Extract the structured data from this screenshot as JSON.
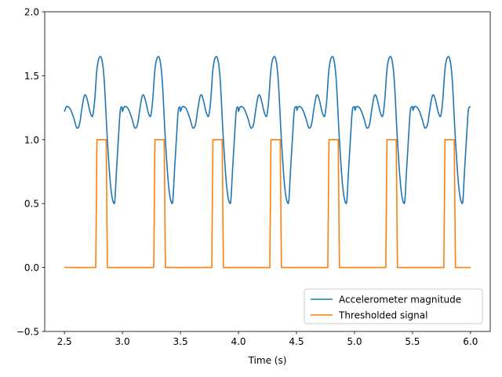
{
  "chart_data": {
    "type": "line",
    "title": "",
    "xlabel": "Time (s)",
    "ylabel": "",
    "xlim": [
      2.33,
      6.17
    ],
    "ylim": [
      -0.5,
      2.0
    ],
    "xticks": [
      2.5,
      3.0,
      3.5,
      4.0,
      4.5,
      5.0,
      5.5,
      6.0
    ],
    "xtick_labels": [
      "2.5",
      "3.0",
      "3.5",
      "4.0",
      "4.5",
      "5.0",
      "5.5",
      "6.0"
    ],
    "yticks": [
      -0.5,
      0.0,
      0.5,
      1.0,
      1.5,
      2.0
    ],
    "ytick_labels": [
      "−0.5",
      "0.0",
      "0.5",
      "1.0",
      "1.5",
      "2.0"
    ],
    "grid": false,
    "legend_position": "lower-right",
    "series": [
      {
        "name": "Accelerometer magnitude",
        "color": "#1f77b4",
        "period": 0.5,
        "x_range": [
          2.5,
          6.0
        ],
        "x": [
          0.0,
          0.02,
          0.05,
          0.08,
          0.11,
          0.13,
          0.15,
          0.17,
          0.18,
          0.2,
          0.22,
          0.24,
          0.26,
          0.28,
          0.31,
          0.34,
          0.37,
          0.4,
          0.43,
          0.45,
          0.47,
          0.48,
          0.5
        ],
        "y": [
          1.22,
          1.26,
          1.24,
          1.17,
          1.09,
          1.12,
          1.24,
          1.34,
          1.35,
          1.3,
          1.22,
          1.18,
          1.3,
          1.55,
          1.65,
          1.5,
          1.0,
          0.62,
          0.5,
          0.78,
          1.08,
          1.22,
          1.26
        ]
      },
      {
        "name": "Thresholded signal",
        "color": "#ff7f0e",
        "period": 0.5,
        "x_range": [
          2.5,
          6.0
        ],
        "x": [
          0.0,
          0.27,
          0.28,
          0.36,
          0.37,
          0.5
        ],
        "y": [
          0,
          0,
          1,
          1,
          0,
          0
        ]
      }
    ]
  }
}
